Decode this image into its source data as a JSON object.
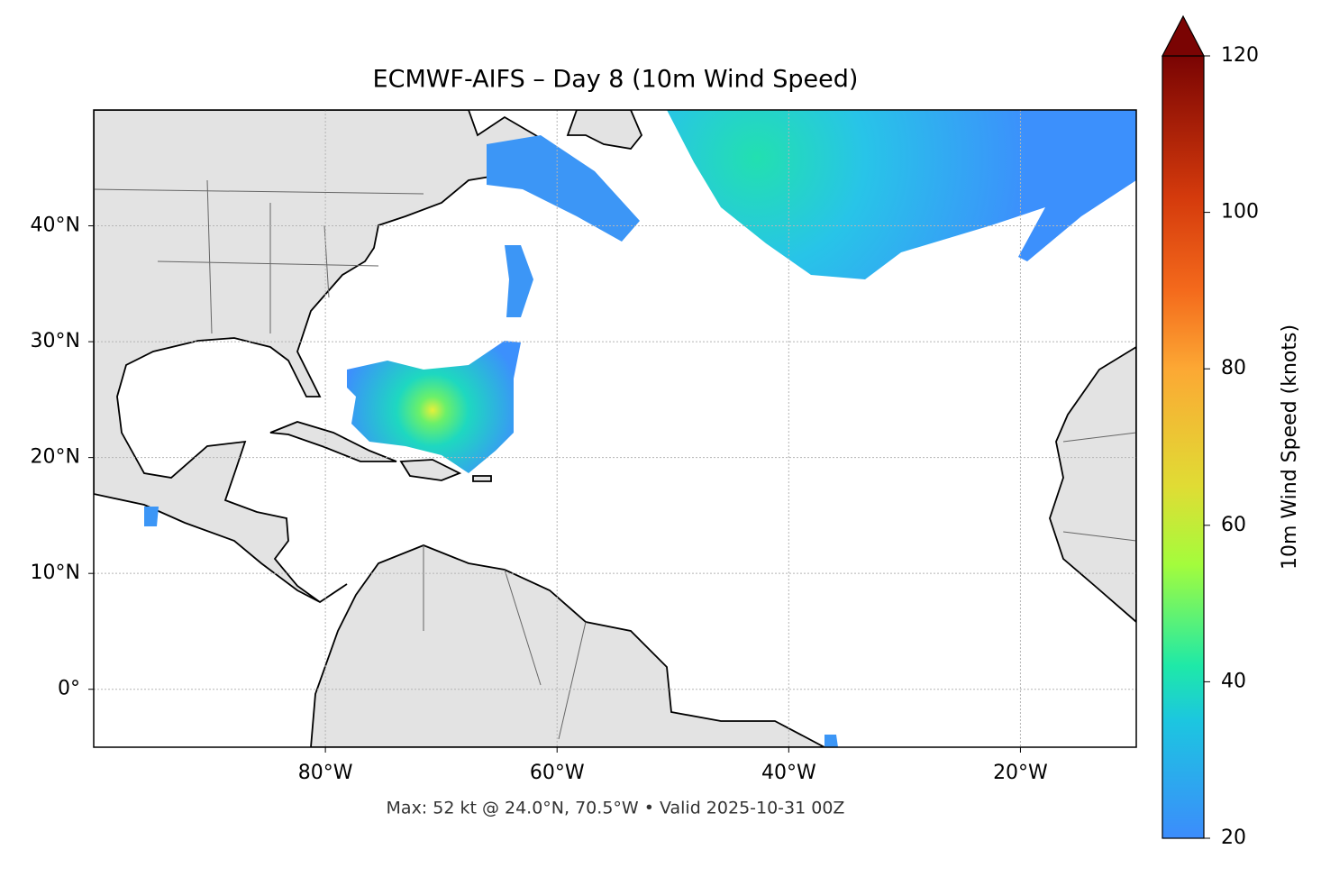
{
  "map": {
    "title": "ECMWF-AIFS – Day 8 (10m Wind Speed)",
    "footer": "Max: 52 kt @ 24.0°N, 70.5°W • Valid 2025-10-31 00Z",
    "xlim": [
      -100,
      -10
    ],
    "ylim": [
      -5,
      50
    ],
    "xticks": [
      {
        "value": -80,
        "label": "80°W"
      },
      {
        "value": -60,
        "label": "60°W"
      },
      {
        "value": -40,
        "label": "40°W"
      },
      {
        "value": -20,
        "label": "20°W"
      }
    ],
    "yticks": [
      {
        "value": 0,
        "label": "0°"
      },
      {
        "value": 10,
        "label": "10°N"
      },
      {
        "value": 20,
        "label": "20°N"
      },
      {
        "value": 30,
        "label": "30°N"
      },
      {
        "value": 40,
        "label": "40°N"
      }
    ],
    "grid": true,
    "colorbar": {
      "label": "10m Wind Speed (knots)",
      "lim": [
        20,
        120
      ],
      "ticks": [
        20,
        40,
        60,
        80,
        100,
        120
      ]
    }
  }
}
